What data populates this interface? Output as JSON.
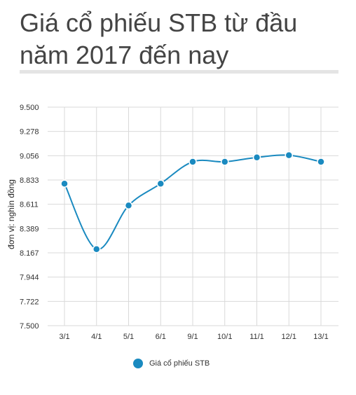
{
  "title": "Giá cổ phiếu STB từ đầu năm 2017 đến nay",
  "chart_data": {
    "type": "line",
    "ylabel": "đơn vị: nghìn đồng",
    "xlabel": "",
    "categories": [
      "3/1",
      "4/1",
      "5/1",
      "6/1",
      "9/1",
      "10/1",
      "11/1",
      "12/1",
      "13/1"
    ],
    "yticks": [
      "9.500",
      "9.278",
      "9.056",
      "8.833",
      "8.611",
      "8.389",
      "8.167",
      "7.944",
      "7.722",
      "7.500"
    ],
    "ylim": [
      7500,
      9500
    ],
    "series": [
      {
        "name": "Giá cổ phiếu STB",
        "values": [
          8800,
          8200,
          8600,
          8800,
          9000,
          9000,
          9040,
          9060,
          9000
        ]
      }
    ],
    "grid": true,
    "legend_position": "bottom",
    "colors": {
      "line": "#1a8ac0",
      "grid": "#d9d9d9"
    }
  }
}
